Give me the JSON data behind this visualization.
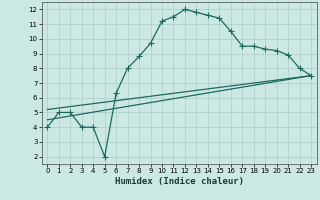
{
  "xlabel": "Humidex (Indice chaleur)",
  "xlim": [
    -0.5,
    23.5
  ],
  "ylim": [
    1.5,
    12.5
  ],
  "xticks": [
    0,
    1,
    2,
    3,
    4,
    5,
    6,
    7,
    8,
    9,
    10,
    11,
    12,
    13,
    14,
    15,
    16,
    17,
    18,
    19,
    20,
    21,
    22,
    23
  ],
  "yticks": [
    2,
    3,
    4,
    5,
    6,
    7,
    8,
    9,
    10,
    11,
    12
  ],
  "background_color": "#cce8e4",
  "plot_bg_color": "#cce8e4",
  "line_color": "#1a6b5e",
  "grid_color": "#aaccc8",
  "curve1_x": [
    0,
    1,
    2,
    3,
    4,
    5,
    6,
    7,
    8,
    9,
    10,
    11,
    12,
    13,
    14,
    15,
    16,
    17,
    18,
    19,
    20,
    21,
    22,
    23
  ],
  "curve1_y": [
    4,
    5,
    5,
    4,
    4,
    2,
    6.3,
    8.0,
    8.8,
    9.7,
    11.2,
    11.5,
    12.0,
    11.8,
    11.6,
    11.4,
    10.5,
    9.5,
    9.5,
    9.3,
    9.2,
    8.9,
    8.0,
    7.5
  ],
  "line1_x": [
    0,
    23
  ],
  "line1_y": [
    4.5,
    7.5
  ],
  "line2_x": [
    0,
    23
  ],
  "line2_y": [
    5.2,
    7.5
  ],
  "marker": "+",
  "markersize": 4,
  "linewidth": 0.9,
  "tick_fontsize": 5,
  "xlabel_fontsize": 6.5
}
